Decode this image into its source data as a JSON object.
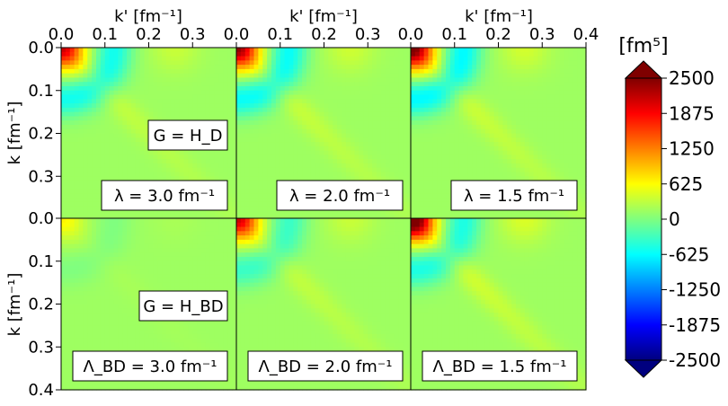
{
  "chart_data": {
    "type": "heatmap",
    "grid": {
      "rows": 2,
      "cols": 3
    },
    "xlabel": "k' [fm⁻¹]",
    "ylabel": "k [fm⁻¹]",
    "xlim": [
      0.0,
      0.4
    ],
    "ylim": [
      0.4,
      0.0
    ],
    "xticks": [
      "0.0",
      "0.1",
      "0.2",
      "0.3",
      "0.4"
    ],
    "yticks": [
      "0.0",
      "0.1",
      "0.2",
      "0.3",
      "0.4"
    ],
    "colorbar": {
      "unit_label": "[fm⁵]",
      "min": -2500,
      "max": 2500,
      "ticks": [
        "2500",
        "1875",
        "1250",
        "625",
        "0",
        "-625",
        "-1250",
        "-1875",
        "-2500"
      ],
      "colormap": "jet"
    },
    "panels": [
      {
        "row": 0,
        "col": 0,
        "peak": 1700,
        "dip": -700,
        "labels": [
          "G = H_D",
          "λ = 3.0 fm⁻¹"
        ]
      },
      {
        "row": 0,
        "col": 1,
        "peak": 1950,
        "dip": -750,
        "labels": [
          "λ = 2.0 fm⁻¹"
        ]
      },
      {
        "row": 0,
        "col": 2,
        "peak": 2150,
        "dip": -800,
        "labels": [
          "λ = 1.5 fm⁻¹"
        ]
      },
      {
        "row": 1,
        "col": 0,
        "peak": 450,
        "dip": -150,
        "labels": [
          "G = H_BD",
          "Λ_BD = 3.0 fm⁻¹"
        ]
      },
      {
        "row": 1,
        "col": 1,
        "peak": 1700,
        "dip": -500,
        "labels": [
          "Λ_BD = 2.0 fm⁻¹"
        ]
      },
      {
        "row": 1,
        "col": 2,
        "peak": 2450,
        "dip": -650,
        "labels": [
          "Λ_BD = 1.5 fm⁻¹"
        ]
      }
    ]
  }
}
